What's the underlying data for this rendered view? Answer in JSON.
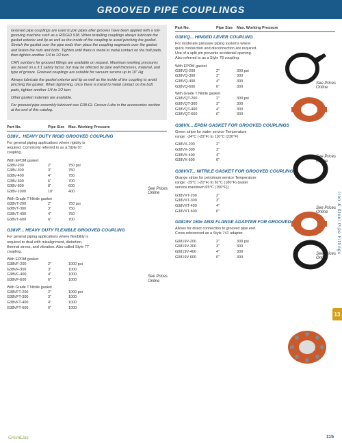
{
  "header": "GROOVED PIPE COUPLINGS",
  "intro": {
    "p1": "Grooved pipe couplings are used to join pipes after grooves have been applied with a roll-grooving machine such as a RIDGID 918. When installing couplings always lubricate the gasket exterior and lip as well as the inside of the coupling to avoid pinching the gasket. Stretch the gasket over the pipe ends then place the coupling segments over the gasket and fasten the nuts and bolts. Tighten until there is metal to metal contact on the bolt pads, then tighten another 1/4 to 1/2 turn.",
    "p2": "CRN numbers for grooved fittings are available on request. Maximum working pressures are based on a 3:1 safety factor, but may be affected by pipe wall thickness, material, and type of groove. Grooved couplings are suitable for vacuum service up to 10\" Hg",
    "p3": "Always lubricate the gasket exterior and lip as well as the inside of the coupling to avoid pinching the gasket. When tightening, once there is metal to metal contact on the bolt pads, tighten another 1/4 to 1/2 turn.",
    "p4": "Other gasket materials are available.",
    "p5": "For grooved pipe assembly lubricant see G38-GL Groove Lube in the accessories section at the end of this catalog."
  },
  "thead": {
    "c1": "Part No.",
    "c2": "Pipe Size",
    "c3": "Max. Working Pressure"
  },
  "pricesNote": "See Prices Online",
  "leftSections": [
    {
      "title": "G38V... HEAVY DUTY RIGID GROOVED COUPLING",
      "desc": "For general piping applications where rigidity is required. Commonly referred to as a Style 07 coupling.",
      "groups": [
        {
          "label": "With EPDM gasket",
          "rows": [
            {
              "pn": "G38V-200",
              "sz": "2\"",
              "pr": "750 psi"
            },
            {
              "pn": "G38V-300",
              "sz": "3\"",
              "pr": "750"
            },
            {
              "pn": "G38V-400",
              "sz": "4\"",
              "pr": "750"
            },
            {
              "pn": "G38V-600",
              "sz": "6\"",
              "pr": "700"
            },
            {
              "pn": "G38V-800",
              "sz": "8\"",
              "pr": "600"
            },
            {
              "pn": "G38V-1000",
              "sz": "10\"",
              "pr": "400"
            }
          ]
        },
        {
          "label": "With Grade T Nitrile gasket",
          "rows": [
            {
              "pn": "G38VT-200",
              "sz": "2\"",
              "pr": "750 psi"
            },
            {
              "pn": "G38VT-300",
              "sz": "3\"",
              "pr": "750"
            },
            {
              "pn": "G38VT-400",
              "sz": "4\"",
              "pr": "750"
            },
            {
              "pn": "G38VT-600",
              "sz": "6\"",
              "pr": "700"
            }
          ]
        }
      ]
    },
    {
      "title": "G38VF... HEAVY DUTY FLEXIBLE GROOVED COUPLING",
      "desc": "For general piping applications where flexibility is required to deal with misalignment, distortion, thermal stress, and vibration. Also called Style 77 coupling.",
      "groups": [
        {
          "label": "With EPDM gasket",
          "rows": [
            {
              "pn": "G38VF-200",
              "sz": "2\"",
              "pr": "1000 psi"
            },
            {
              "pn": "G38VF-300",
              "sz": "3\"",
              "pr": "1000"
            },
            {
              "pn": "G38VF-400",
              "sz": "4\"",
              "pr": "1000"
            },
            {
              "pn": "G38VF-600",
              "sz": "6\"",
              "pr": "1000"
            }
          ]
        },
        {
          "label": "With Grade T Nitrile gasket",
          "rows": [
            {
              "pn": "G38VFT-200",
              "sz": "2\"",
              "pr": "1000 psi"
            },
            {
              "pn": "G38VFT-300",
              "sz": "3\"",
              "pr": "1000"
            },
            {
              "pn": "G38VFT-400",
              "sz": "4\"",
              "pr": "1000"
            },
            {
              "pn": "G38VFT-600",
              "sz": "6\"",
              "pr": "1000"
            }
          ]
        }
      ]
    }
  ],
  "rightSections": [
    {
      "title": "G38VQ... HINGED LEVER COUPLING",
      "desc": "For moderate pressure piping systems where quick connection and disconnection are required. Use of a split pin prevents accidental opening. Also referred to as a Style 78 coupling.",
      "groups": [
        {
          "label": "With EPDM gasket",
          "rows": [
            {
              "pn": "G38VQ-200",
              "sz": "2\"",
              "pr": "300 psi"
            },
            {
              "pn": "G38VQ-300",
              "sz": "3\"",
              "pr": "300"
            },
            {
              "pn": "G38VQ-400",
              "sz": "4\"",
              "pr": "300"
            },
            {
              "pn": "G38VQ-600",
              "sz": "6\"",
              "pr": "300"
            }
          ]
        },
        {
          "label": "With Grade T Nitrile gasket",
          "rows": [
            {
              "pn": "G38VQT-200",
              "sz": "2\"",
              "pr": "300 psi"
            },
            {
              "pn": "G38VQT-300",
              "sz": "3\"",
              "pr": "300"
            },
            {
              "pn": "G38VQT-400",
              "sz": "4\"",
              "pr": "300"
            },
            {
              "pn": "G38VQT-600",
              "sz": "6\"",
              "pr": "300"
            }
          ]
        }
      ]
    },
    {
      "title": "G38VX... EPDM GASKET FOR GROOVED COUPLINGS",
      "desc": "Green stripe for water service\nTemperature range: -34°C (-29°F) to 110°C (230°F)",
      "groups": [
        {
          "label": "",
          "rows": [
            {
              "pn": "G38VX-200",
              "sz": "2\"",
              "pr": ""
            },
            {
              "pn": "G38VX-300",
              "sz": "3\"",
              "pr": ""
            },
            {
              "pn": "G38VX-400",
              "sz": "4\"",
              "pr": ""
            },
            {
              "pn": "G38VX-600",
              "sz": "6\"",
              "pr": ""
            }
          ]
        }
      ]
    },
    {
      "title": "G38VXT... NITRILE GASKET FOR GROOVED COUPLINGS",
      "desc": "Orange stripe for petroleum service\nTemperature range: -29°C (-20°F) to 82°C (180°F) (water service maximum 65°C (150°F))",
      "groups": [
        {
          "label": "",
          "rows": [
            {
              "pn": "G38VXT-200",
              "sz": "2\"",
              "pr": ""
            },
            {
              "pn": "G38VXT-300",
              "sz": "3\"",
              "pr": ""
            },
            {
              "pn": "G38VXT-400",
              "sz": "4\"",
              "pr": ""
            },
            {
              "pn": "G38VXT-600",
              "sz": "6\"",
              "pr": ""
            }
          ]
        }
      ]
    },
    {
      "title": "G0819V 150# ANSI FLANGE ADAPTER FOR GROOVED PIPE",
      "desc": "Allows for direct connection to grooved pipe end. Cross referenced as a Style 741 adapter.",
      "groups": [
        {
          "label": "",
          "rows": [
            {
              "pn": "G0819V-200",
              "sz": "2\"",
              "pr": "300 psi"
            },
            {
              "pn": "G0819V-300",
              "sz": "3\"",
              "pr": "300"
            },
            {
              "pn": "G0819V-400",
              "sz": "4\"",
              "pr": "300"
            },
            {
              "pn": "G0819V-600",
              "sz": "6\"",
              "pr": "300"
            }
          ]
        }
      ]
    }
  ],
  "sideText": "Iron & Steel Pipe Fittings",
  "tab": "13",
  "footer": {
    "gl": "GreenLine",
    "pn": "115"
  },
  "colors": {
    "headerBg": "#1a5a8a",
    "coupling": "#c85a2e",
    "gasket": "#1a1a1a",
    "tab": "#d4a017"
  }
}
